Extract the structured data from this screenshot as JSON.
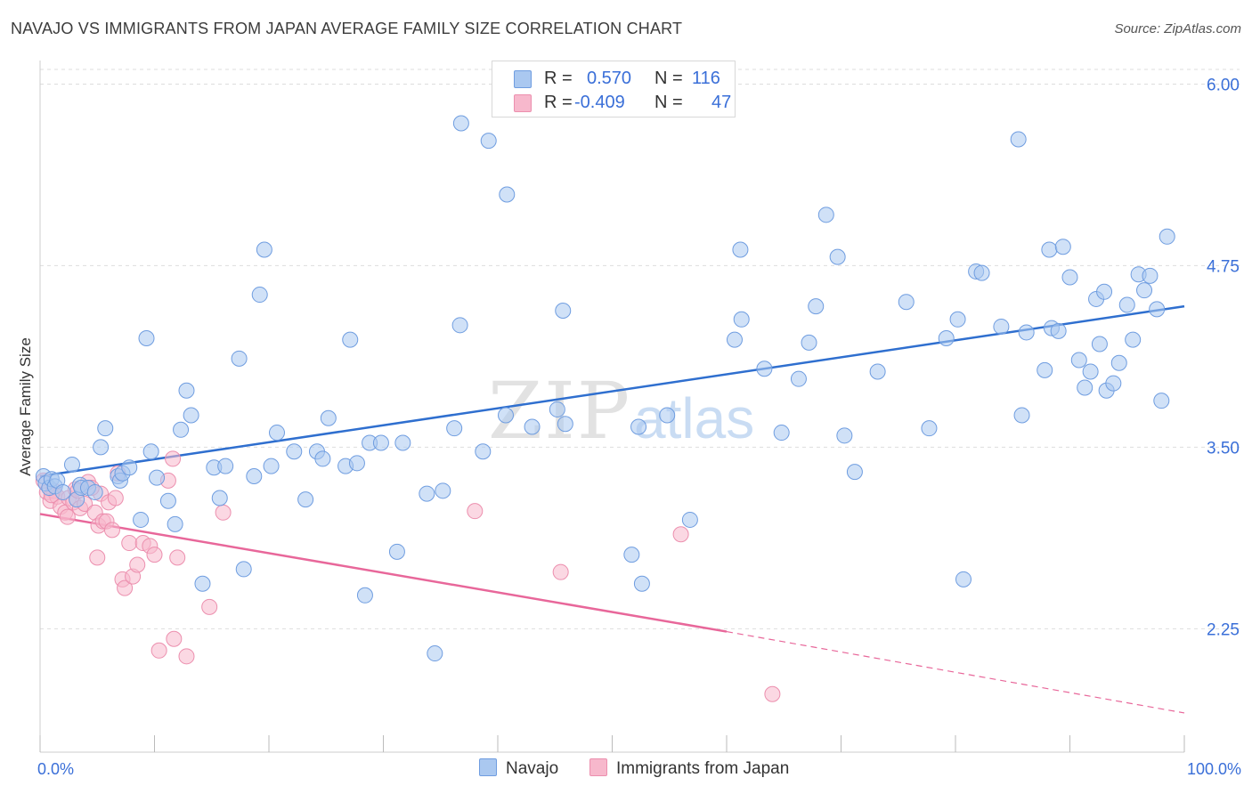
{
  "title": "NAVAJO VS IMMIGRANTS FROM JAPAN AVERAGE FAMILY SIZE CORRELATION CHART",
  "source": "Source: ZipAtlas.com",
  "watermark": {
    "zip": "ZIP",
    "atlas": "atlas"
  },
  "legend": {
    "series1": {
      "r_label": "R =",
      "r_value": "0.570",
      "n_label": "N =",
      "n_value": "116"
    },
    "series2": {
      "r_label": "R =",
      "r_value": "-0.409",
      "n_label": "N =",
      "n_value": "47"
    }
  },
  "colors": {
    "navajo_fill": "#aac8f0",
    "navajo_stroke": "#6f9de0",
    "navajo_line": "#2f6fcf",
    "japan_fill": "#f7b8cc",
    "japan_stroke": "#ec8fae",
    "japan_line": "#e8679a",
    "grid": "#dddddd",
    "axis_label": "#3a6fd8"
  },
  "chart_data": {
    "type": "scatter",
    "title": "NAVAJO VS IMMIGRANTS FROM JAPAN AVERAGE FAMILY SIZE CORRELATION CHART",
    "xlabel": "",
    "ylabel": "Average Family Size",
    "xlim": [
      0,
      100
    ],
    "ylim": [
      1.4,
      6.15
    ],
    "x_tick_labels": [
      "0.0%",
      "100.0%"
    ],
    "y_ticks": [
      2.25,
      3.5,
      4.75,
      6.0
    ],
    "y_tick_labels": [
      "2.25",
      "3.50",
      "4.75",
      "6.00"
    ],
    "grid": true,
    "series": [
      {
        "name": "Navajo",
        "points": [
          [
            0.3,
            3.3
          ],
          [
            0.5,
            3.25
          ],
          [
            0.8,
            3.22
          ],
          [
            1.0,
            3.28
          ],
          [
            1.3,
            3.23
          ],
          [
            1.5,
            3.27
          ],
          [
            2.0,
            3.19
          ],
          [
            2.8,
            3.38
          ],
          [
            3.2,
            3.14
          ],
          [
            3.5,
            3.24
          ],
          [
            3.6,
            3.22
          ],
          [
            4.2,
            3.22
          ],
          [
            4.8,
            3.19
          ],
          [
            5.3,
            3.5
          ],
          [
            5.7,
            3.63
          ],
          [
            6.8,
            3.3
          ],
          [
            7.0,
            3.27
          ],
          [
            7.2,
            3.32
          ],
          [
            7.8,
            3.36
          ],
          [
            8.8,
            3.0
          ],
          [
            9.3,
            4.25
          ],
          [
            9.7,
            3.47
          ],
          [
            10.2,
            3.29
          ],
          [
            11.2,
            3.13
          ],
          [
            11.8,
            2.97
          ],
          [
            12.3,
            3.62
          ],
          [
            12.8,
            3.89
          ],
          [
            13.2,
            3.72
          ],
          [
            14.2,
            2.56
          ],
          [
            15.2,
            3.36
          ],
          [
            15.7,
            3.15
          ],
          [
            16.2,
            3.37
          ],
          [
            17.4,
            4.11
          ],
          [
            17.8,
            2.66
          ],
          [
            18.7,
            3.3
          ],
          [
            19.2,
            4.55
          ],
          [
            19.6,
            4.86
          ],
          [
            20.2,
            3.37
          ],
          [
            20.7,
            3.6
          ],
          [
            22.2,
            3.47
          ],
          [
            23.2,
            3.14
          ],
          [
            24.2,
            3.47
          ],
          [
            24.7,
            3.42
          ],
          [
            25.2,
            3.7
          ],
          [
            26.7,
            3.37
          ],
          [
            27.1,
            4.24
          ],
          [
            27.7,
            3.39
          ],
          [
            28.4,
            2.48
          ],
          [
            28.8,
            3.53
          ],
          [
            29.8,
            3.53
          ],
          [
            31.2,
            2.78
          ],
          [
            31.7,
            3.53
          ],
          [
            33.8,
            3.18
          ],
          [
            34.5,
            2.08
          ],
          [
            35.2,
            3.2
          ],
          [
            36.2,
            3.63
          ],
          [
            36.7,
            4.34
          ],
          [
            36.8,
            5.73
          ],
          [
            38.7,
            3.47
          ],
          [
            39.2,
            5.61
          ],
          [
            40.7,
            3.72
          ],
          [
            40.8,
            5.24
          ],
          [
            43.0,
            3.64
          ],
          [
            45.2,
            3.76
          ],
          [
            45.7,
            4.44
          ],
          [
            45.9,
            3.66
          ],
          [
            51.7,
            2.76
          ],
          [
            52.3,
            3.64
          ],
          [
            52.6,
            2.56
          ],
          [
            54.8,
            3.72
          ],
          [
            56.8,
            3.0
          ],
          [
            60.7,
            4.24
          ],
          [
            61.2,
            4.86
          ],
          [
            61.3,
            4.38
          ],
          [
            63.3,
            4.04
          ],
          [
            64.8,
            3.6
          ],
          [
            66.3,
            3.97
          ],
          [
            67.2,
            4.22
          ],
          [
            67.8,
            4.47
          ],
          [
            68.7,
            5.1
          ],
          [
            69.7,
            4.81
          ],
          [
            70.3,
            3.58
          ],
          [
            71.2,
            3.33
          ],
          [
            73.2,
            4.02
          ],
          [
            75.7,
            4.5
          ],
          [
            77.7,
            3.63
          ],
          [
            79.2,
            4.25
          ],
          [
            80.2,
            4.38
          ],
          [
            80.7,
            2.59
          ],
          [
            81.8,
            4.71
          ],
          [
            82.3,
            4.7
          ],
          [
            84.0,
            4.33
          ],
          [
            85.5,
            5.62
          ],
          [
            85.8,
            3.72
          ],
          [
            86.2,
            4.29
          ],
          [
            87.8,
            4.03
          ],
          [
            88.2,
            4.86
          ],
          [
            88.4,
            4.32
          ],
          [
            89.0,
            4.3
          ],
          [
            89.4,
            4.88
          ],
          [
            90.0,
            4.67
          ],
          [
            90.8,
            4.1
          ],
          [
            91.3,
            3.91
          ],
          [
            91.8,
            4.02
          ],
          [
            92.3,
            4.52
          ],
          [
            92.6,
            4.21
          ],
          [
            93.0,
            4.57
          ],
          [
            93.2,
            3.89
          ],
          [
            93.8,
            3.94
          ],
          [
            94.3,
            4.08
          ],
          [
            95.0,
            4.48
          ],
          [
            95.5,
            4.24
          ],
          [
            96.0,
            4.69
          ],
          [
            96.5,
            4.58
          ],
          [
            97.0,
            4.68
          ],
          [
            97.6,
            4.45
          ],
          [
            98.0,
            3.82
          ],
          [
            98.5,
            4.95
          ]
        ]
      },
      {
        "name": "Immigrants from Japan",
        "points": [
          [
            0.3,
            3.27
          ],
          [
            0.6,
            3.19
          ],
          [
            0.9,
            3.13
          ],
          [
            1.2,
            3.2
          ],
          [
            1.5,
            3.16
          ],
          [
            1.8,
            3.09
          ],
          [
            2.2,
            3.05
          ],
          [
            2.5,
            3.15
          ],
          [
            2.9,
            3.12
          ],
          [
            3.1,
            3.21
          ],
          [
            3.5,
            3.08
          ],
          [
            3.9,
            3.11
          ],
          [
            4.2,
            3.26
          ],
          [
            4.8,
            3.05
          ],
          [
            5.0,
            2.74
          ],
          [
            5.1,
            2.96
          ],
          [
            5.3,
            3.18
          ],
          [
            5.5,
            2.99
          ],
          [
            5.8,
            2.99
          ],
          [
            6.0,
            3.12
          ],
          [
            6.3,
            2.93
          ],
          [
            6.8,
            3.32
          ],
          [
            7.2,
            2.59
          ],
          [
            7.4,
            2.53
          ],
          [
            7.8,
            2.84
          ],
          [
            8.1,
            2.61
          ],
          [
            8.5,
            2.69
          ],
          [
            9.0,
            2.84
          ],
          [
            9.6,
            2.82
          ],
          [
            10.0,
            2.76
          ],
          [
            10.4,
            2.1
          ],
          [
            11.2,
            3.27
          ],
          [
            11.6,
            3.42
          ],
          [
            11.7,
            2.18
          ],
          [
            12.0,
            2.74
          ],
          [
            12.8,
            2.06
          ],
          [
            14.8,
            2.4
          ],
          [
            16.0,
            3.05
          ],
          [
            38.0,
            3.06
          ],
          [
            45.5,
            2.64
          ],
          [
            56.0,
            2.9
          ],
          [
            64.0,
            1.8
          ],
          [
            2.4,
            3.02
          ],
          [
            3.3,
            3.2
          ],
          [
            1.0,
            3.17
          ],
          [
            4.5,
            3.22
          ],
          [
            6.6,
            3.15
          ]
        ]
      }
    ],
    "trend_lines": [
      {
        "series": "Navajo",
        "from": [
          0,
          3.3
        ],
        "to": [
          100,
          4.47
        ],
        "style": "solid"
      },
      {
        "series": "Immigrants from Japan",
        "from": [
          0,
          3.04
        ],
        "to": [
          60,
          2.23
        ],
        "style": "solid"
      },
      {
        "series": "Immigrants from Japan",
        "from": [
          60,
          2.23
        ],
        "to": [
          100,
          1.67
        ],
        "style": "dashed"
      }
    ]
  },
  "bottom_legend": [
    "Navajo",
    "Immigrants from Japan"
  ]
}
